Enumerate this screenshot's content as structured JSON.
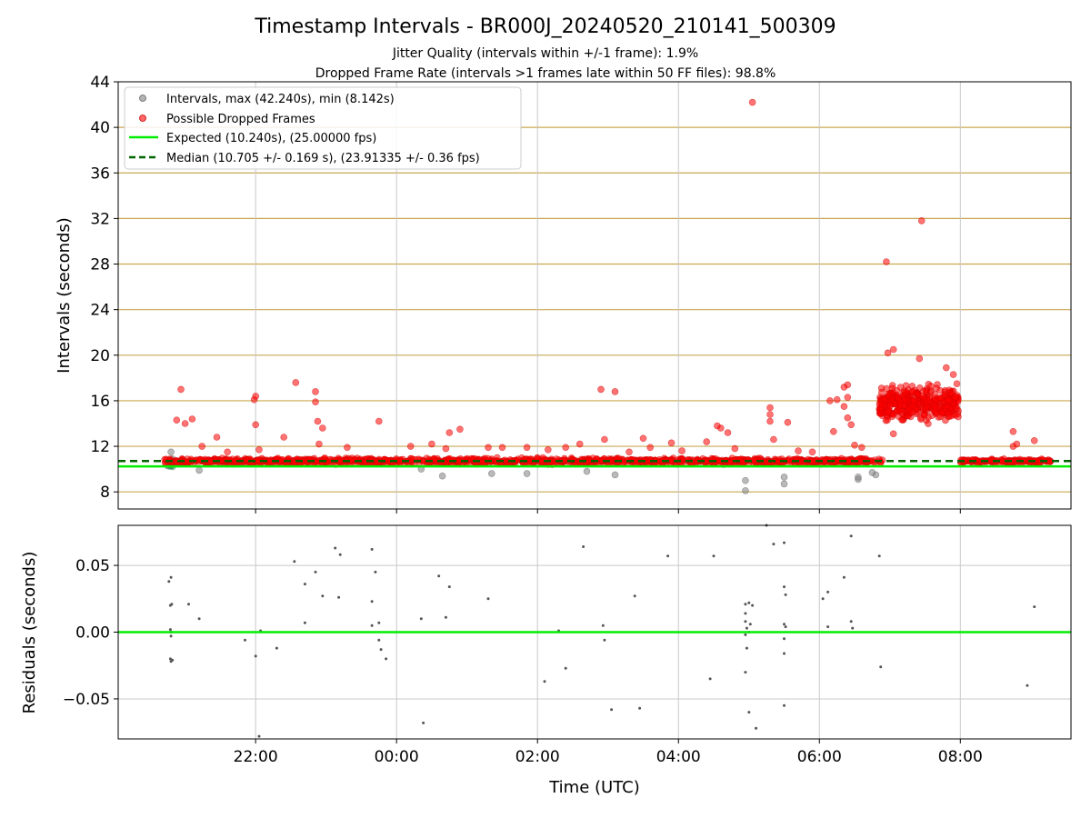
{
  "title": "Timestamp Intervals - BR000J_20240520_210141_500309",
  "subtitle_1": "Jitter Quality (intervals within +/-1 frame): 1.9%",
  "subtitle_2": "Dropped Frame Rate (intervals >1 frames late within 50 FF files): 98.8%",
  "colors": {
    "gray_points": "#808080",
    "red_points": "#ff0000",
    "expected_line": "#00ee00",
    "median_line": "#006400",
    "h_grid": "#c8a850",
    "v_grid": "#c8c8c8"
  },
  "chart_data": [
    {
      "type": "scatter",
      "name": "intervals",
      "xlabel": "",
      "ylabel": "Intervals (seconds)",
      "ylim": [
        6.5,
        44
      ],
      "xlim": [
        -3.95,
        9.57
      ],
      "x_unit": "hours UTC (negative = before midnight)",
      "y_ticks": [
        "8",
        "12",
        "16",
        "20",
        "24",
        "28",
        "32",
        "36",
        "40",
        "44"
      ],
      "y_tick_values": [
        8,
        12,
        16,
        20,
        24,
        28,
        32,
        36,
        40,
        44
      ],
      "x_ticks": [
        "22:00",
        "00:00",
        "02:00",
        "04:00",
        "06:00",
        "08:00"
      ],
      "x_tick_values": [
        -2,
        0,
        2,
        4,
        6,
        8
      ],
      "grid": "horizontal tan lines at y ticks, vertical gray lines at x ticks",
      "legend_position": "top-left",
      "legend": [
        "Intervals, max (42.240s), min (8.142s)",
        "Possible Dropped Frames",
        "Expected (10.240s), (25.00000 fps)",
        "Median (10.705 +/- 0.169 s), (23.91335 +/- 0.36 fps)"
      ],
      "expected_value": 10.24,
      "median_value": 10.705,
      "bands": [
        {
          "x_start": -3.3,
          "x_end": 6.9,
          "y_center": 10.7,
          "y_spread": 0.35
        },
        {
          "x_start": 8.0,
          "x_end": 9.3,
          "y_center": 10.7,
          "y_spread": 0.25
        },
        {
          "x_start": 6.85,
          "x_end": 7.98,
          "y_center": 15.8,
          "y_spread": 1.3
        }
      ],
      "red_outliers": [
        [
          -3.06,
          17.0
        ],
        [
          -3.12,
          14.3
        ],
        [
          -3.0,
          14.0
        ],
        [
          -2.9,
          14.4
        ],
        [
          -2.76,
          12.0
        ],
        [
          -2.55,
          12.8
        ],
        [
          -2.4,
          11.5
        ],
        [
          -2.02,
          16.1
        ],
        [
          -2.0,
          16.4
        ],
        [
          -2.0,
          13.9
        ],
        [
          -1.95,
          11.7
        ],
        [
          -1.6,
          12.8
        ],
        [
          -1.43,
          17.6
        ],
        [
          -1.1,
          12.2
        ],
        [
          -1.15,
          16.8
        ],
        [
          -1.15,
          15.9
        ],
        [
          -1.12,
          14.2
        ],
        [
          -1.05,
          13.6
        ],
        [
          -0.25,
          14.2
        ],
        [
          -0.7,
          11.9
        ],
        [
          0.2,
          12.0
        ],
        [
          0.5,
          12.2
        ],
        [
          0.75,
          13.2
        ],
        [
          0.9,
          13.5
        ],
        [
          0.7,
          11.8
        ],
        [
          1.3,
          11.9
        ],
        [
          1.5,
          11.9
        ],
        [
          1.85,
          11.9
        ],
        [
          2.15,
          11.7
        ],
        [
          2.4,
          11.9
        ],
        [
          2.6,
          12.2
        ],
        [
          2.9,
          17.0
        ],
        [
          2.95,
          12.6
        ],
        [
          3.1,
          16.8
        ],
        [
          3.3,
          11.5
        ],
        [
          3.5,
          12.7
        ],
        [
          3.6,
          11.9
        ],
        [
          3.9,
          12.3
        ],
        [
          4.05,
          11.6
        ],
        [
          4.4,
          12.4
        ],
        [
          4.55,
          13.8
        ],
        [
          4.6,
          13.6
        ],
        [
          4.7,
          13.2
        ],
        [
          4.8,
          11.8
        ],
        [
          5.05,
          42.2
        ],
        [
          5.3,
          15.4
        ],
        [
          5.3,
          14.8
        ],
        [
          5.3,
          14.2
        ],
        [
          5.35,
          12.6
        ],
        [
          5.55,
          14.1
        ],
        [
          5.7,
          11.6
        ],
        [
          5.9,
          11.5
        ],
        [
          6.15,
          16.0
        ],
        [
          6.2,
          13.3
        ],
        [
          6.25,
          16.1
        ],
        [
          6.35,
          17.2
        ],
        [
          6.4,
          17.4
        ],
        [
          6.4,
          16.3
        ],
        [
          6.35,
          15.5
        ],
        [
          6.4,
          14.5
        ],
        [
          6.45,
          13.9
        ],
        [
          6.5,
          12.1
        ],
        [
          6.6,
          11.9
        ],
        [
          6.95,
          28.2
        ],
        [
          6.97,
          20.2
        ],
        [
          7.05,
          20.5
        ],
        [
          7.45,
          31.8
        ],
        [
          7.42,
          19.7
        ],
        [
          7.8,
          18.9
        ],
        [
          7.9,
          18.3
        ],
        [
          7.05,
          13.1
        ],
        [
          8.75,
          12.0
        ],
        [
          8.8,
          12.2
        ],
        [
          8.75,
          13.3
        ],
        [
          9.05,
          12.5
        ]
      ],
      "gray_outliers": [
        [
          -3.25,
          10.3
        ],
        [
          -3.22,
          10.5
        ],
        [
          -3.2,
          11.5
        ],
        [
          -3.18,
          10.9
        ],
        [
          -2.8,
          9.9
        ],
        [
          0.35,
          10.0
        ],
        [
          0.65,
          9.4
        ],
        [
          1.35,
          9.6
        ],
        [
          1.85,
          9.6
        ],
        [
          2.7,
          9.8
        ],
        [
          3.1,
          9.5
        ],
        [
          4.95,
          9.0
        ],
        [
          4.95,
          8.1
        ],
        [
          5.5,
          9.3
        ],
        [
          5.5,
          8.7
        ],
        [
          6.55,
          9.1
        ],
        [
          6.55,
          9.3
        ],
        [
          6.8,
          9.5
        ],
        [
          6.75,
          9.7
        ]
      ]
    },
    {
      "type": "scatter",
      "name": "residuals",
      "xlabel": "Time (UTC)",
      "ylabel": "Residuals (seconds)",
      "ylim": [
        -0.08,
        0.08
      ],
      "xlim": [
        -3.95,
        9.57
      ],
      "y_ticks": [
        "−0.05",
        "0.00",
        "0.05"
      ],
      "y_tick_values": [
        -0.05,
        0.0,
        0.05
      ],
      "x_ticks": [
        "22:00",
        "00:00",
        "02:00",
        "04:00",
        "06:00",
        "08:00"
      ],
      "x_tick_values": [
        -2,
        0,
        2,
        4,
        6,
        8
      ],
      "zero_line": 0.0,
      "points": [
        [
          -3.23,
          0.038
        ],
        [
          -3.2,
          0.041
        ],
        [
          -3.21,
          0.02
        ],
        [
          -3.19,
          0.021
        ],
        [
          -3.21,
          0.002
        ],
        [
          -3.2,
          0.0
        ],
        [
          -3.2,
          -0.003
        ],
        [
          -3.21,
          -0.02
        ],
        [
          -3.2,
          -0.022
        ],
        [
          -3.18,
          -0.021
        ],
        [
          -2.95,
          0.021
        ],
        [
          -2.8,
          0.01
        ],
        [
          -2.15,
          -0.006
        ],
        [
          -2.0,
          -0.018
        ],
        [
          -1.93,
          0.001
        ],
        [
          -1.95,
          -0.078
        ],
        [
          -1.7,
          -0.012
        ],
        [
          -1.45,
          0.053
        ],
        [
          -1.3,
          0.036
        ],
        [
          -1.3,
          0.007
        ],
        [
          -1.15,
          0.045
        ],
        [
          -1.05,
          0.027
        ],
        [
          -0.87,
          0.063
        ],
        [
          -0.8,
          0.058
        ],
        [
          -0.82,
          0.026
        ],
        [
          -0.35,
          0.062
        ],
        [
          -0.3,
          0.045
        ],
        [
          -0.35,
          0.023
        ],
        [
          -0.35,
          0.005
        ],
        [
          -0.25,
          0.007
        ],
        [
          -0.25,
          -0.006
        ],
        [
          -0.22,
          -0.013
        ],
        [
          -0.15,
          -0.02
        ],
        [
          0.35,
          0.01
        ],
        [
          0.38,
          -0.068
        ],
        [
          0.6,
          0.042
        ],
        [
          0.7,
          0.011
        ],
        [
          0.75,
          0.034
        ],
        [
          1.3,
          0.025
        ],
        [
          2.1,
          -0.037
        ],
        [
          2.3,
          0.001
        ],
        [
          2.4,
          -0.027
        ],
        [
          2.65,
          0.064
        ],
        [
          2.93,
          0.005
        ],
        [
          2.95,
          -0.006
        ],
        [
          3.05,
          -0.058
        ],
        [
          3.38,
          0.027
        ],
        [
          3.45,
          -0.057
        ],
        [
          3.85,
          0.057
        ],
        [
          4.45,
          -0.035
        ],
        [
          4.5,
          0.057
        ],
        [
          4.95,
          0.021
        ],
        [
          4.95,
          0.014
        ],
        [
          4.95,
          0.008
        ],
        [
          4.97,
          0.003
        ],
        [
          4.95,
          -0.002
        ],
        [
          4.97,
          -0.012
        ],
        [
          4.95,
          -0.03
        ],
        [
          5.0,
          -0.06
        ],
        [
          5.0,
          0.022
        ],
        [
          5.05,
          0.02
        ],
        [
          5.02,
          0.006
        ],
        [
          5.0,
          0.0
        ],
        [
          5.1,
          -0.072
        ],
        [
          5.25,
          0.08
        ],
        [
          5.35,
          0.066
        ],
        [
          5.5,
          0.067
        ],
        [
          5.5,
          0.034
        ],
        [
          5.52,
          0.028
        ],
        [
          5.5,
          0.006
        ],
        [
          5.52,
          0.004
        ],
        [
          5.5,
          -0.005
        ],
        [
          5.5,
          -0.016
        ],
        [
          5.5,
          -0.055
        ],
        [
          6.05,
          0.025
        ],
        [
          6.12,
          0.03
        ],
        [
          6.12,
          0.004
        ],
        [
          6.35,
          0.041
        ],
        [
          6.45,
          0.072
        ],
        [
          6.45,
          0.008
        ],
        [
          6.47,
          0.003
        ],
        [
          6.85,
          0.057
        ],
        [
          6.87,
          -0.026
        ],
        [
          8.95,
          -0.04
        ],
        [
          9.05,
          0.019
        ]
      ]
    }
  ]
}
